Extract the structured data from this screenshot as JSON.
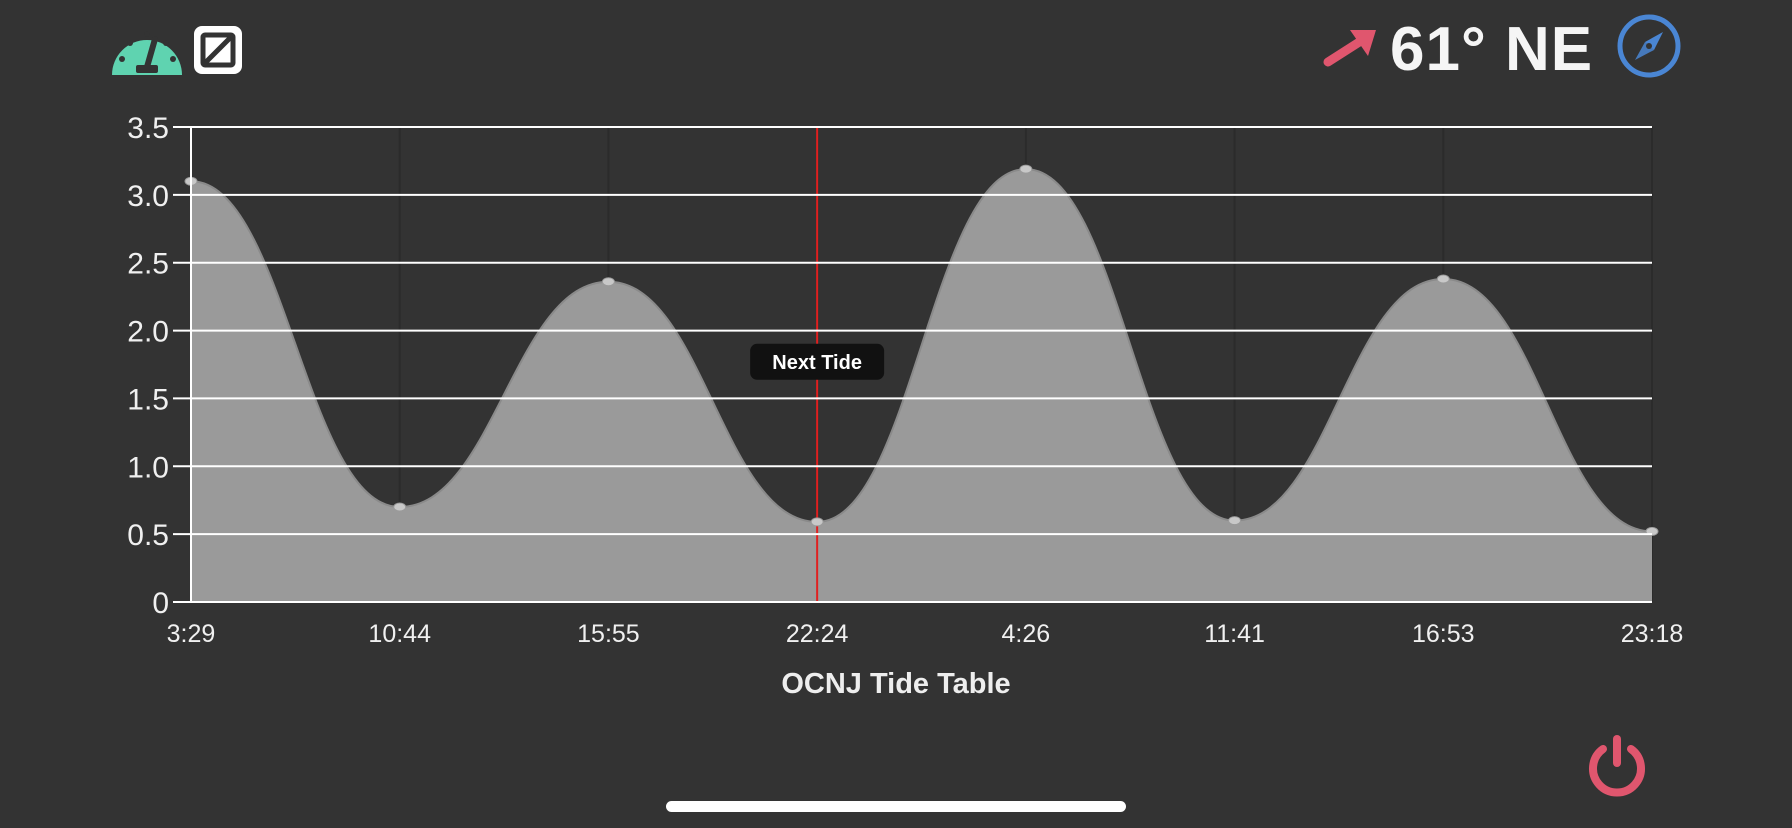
{
  "toolbar": {
    "left_icons": [
      "speedometer-icon",
      "bypass-square-icon"
    ],
    "wind_label": "61° NE",
    "wind_arrow_icon": "arrow-up-right-icon",
    "compass_icon": "compass-icon",
    "power_icon": "power-icon"
  },
  "colors": {
    "background": "#333333",
    "speedometer": "#5fd3b0",
    "wind_arrow": "#e0566e",
    "compass": "#4a86d4",
    "power": "#e0566e",
    "area_fill": "#9a9a9a",
    "marker_line": "#e02020"
  },
  "chart_data": {
    "type": "area",
    "title": "OCNJ Tide Table",
    "xlabel": "",
    "ylabel": "",
    "x": [
      "3:29",
      "10:44",
      "15:55",
      "22:24",
      "4:26",
      "11:41",
      "16:53",
      "23:18"
    ],
    "values": [
      3.1,
      0.7,
      2.36,
      0.59,
      3.19,
      0.6,
      2.38,
      0.52
    ],
    "ylim": [
      0,
      3.5
    ],
    "yticks": [
      "0",
      "0.5",
      "1.0",
      "1.5",
      "2.0",
      "2.5",
      "3.0",
      "3.5"
    ],
    "grid": true,
    "annotation": {
      "label": "Next Tide",
      "at": "22:24"
    }
  }
}
